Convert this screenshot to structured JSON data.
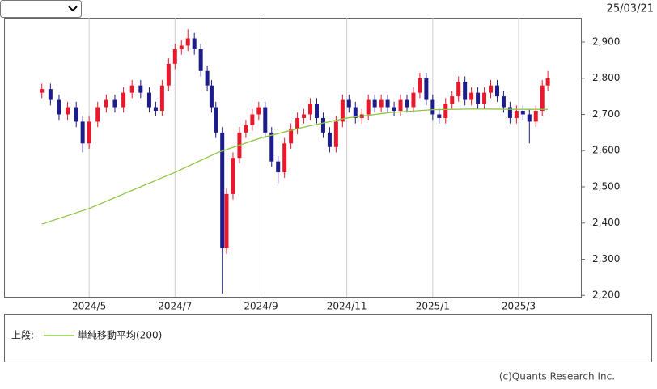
{
  "header": {
    "date": "25/03/21"
  },
  "chart_data": {
    "type": "candlestick",
    "x": [
      3.9,
      4.1,
      4.3,
      4.5,
      4.7,
      4.85,
      5.0,
      5.2,
      5.4,
      5.6,
      5.8,
      6.0,
      6.2,
      6.4,
      6.55,
      6.7,
      6.85,
      7.0,
      7.15,
      7.3,
      7.45,
      7.6,
      7.75,
      7.85,
      7.95,
      8.1,
      8.2,
      8.35,
      8.5,
      8.65,
      8.8,
      8.95,
      9.1,
      9.25,
      9.4,
      9.55,
      9.7,
      9.85,
      10.0,
      10.15,
      10.3,
      10.45,
      10.6,
      10.75,
      10.9,
      11.05,
      11.2,
      11.35,
      11.5,
      11.65,
      11.8,
      11.95,
      12.1,
      12.25,
      12.4,
      12.55,
      12.7,
      12.85,
      13.0,
      13.15,
      13.3,
      13.45,
      13.6,
      13.75,
      13.9,
      14.05,
      14.2,
      14.35,
      14.5,
      14.65,
      14.8,
      14.95,
      15.1,
      15.25,
      15.4,
      15.55,
      15.68
    ],
    "open": [
      2760,
      2770,
      2740,
      2700,
      2720,
      2680,
      2620,
      2680,
      2720,
      2740,
      2720,
      2760,
      2780,
      2760,
      2720,
      2710,
      2780,
      2840,
      2880,
      2890,
      2910,
      2880,
      2820,
      2780,
      2720,
      2650,
      2330,
      2480,
      2580,
      2650,
      2670,
      2700,
      2720,
      2650,
      2570,
      2540,
      2620,
      2660,
      2690,
      2700,
      2730,
      2690,
      2650,
      2610,
      2680,
      2740,
      2720,
      2690,
      2700,
      2740,
      2720,
      2740,
      2720,
      2710,
      2740,
      2720,
      2760,
      2800,
      2740,
      2700,
      2690,
      2730,
      2750,
      2790,
      2740,
      2760,
      2730,
      2760,
      2780,
      2750,
      2720,
      2690,
      2710,
      2700,
      2680,
      2710,
      2780
    ],
    "high": [
      2785,
      2785,
      2755,
      2735,
      2735,
      2695,
      2695,
      2735,
      2755,
      2755,
      2775,
      2795,
      2795,
      2775,
      2735,
      2795,
      2855,
      2895,
      2905,
      2935,
      2925,
      2895,
      2835,
      2795,
      2735,
      2665,
      2495,
      2595,
      2665,
      2685,
      2715,
      2735,
      2735,
      2665,
      2585,
      2635,
      2675,
      2705,
      2715,
      2745,
      2745,
      2705,
      2665,
      2695,
      2755,
      2755,
      2735,
      2715,
      2755,
      2755,
      2755,
      2755,
      2735,
      2755,
      2755,
      2775,
      2815,
      2815,
      2755,
      2715,
      2745,
      2765,
      2805,
      2805,
      2775,
      2775,
      2775,
      2795,
      2795,
      2765,
      2735,
      2725,
      2725,
      2715,
      2725,
      2795,
      2820
    ],
    "low": [
      2745,
      2725,
      2685,
      2685,
      2665,
      2595,
      2605,
      2665,
      2705,
      2705,
      2705,
      2745,
      2745,
      2705,
      2695,
      2695,
      2765,
      2825,
      2865,
      2875,
      2865,
      2805,
      2765,
      2705,
      2635,
      2205,
      2315,
      2465,
      2565,
      2635,
      2655,
      2685,
      2635,
      2555,
      2510,
      2525,
      2605,
      2645,
      2675,
      2685,
      2675,
      2635,
      2595,
      2595,
      2665,
      2705,
      2675,
      2675,
      2685,
      2705,
      2705,
      2705,
      2695,
      2695,
      2705,
      2705,
      2745,
      2725,
      2685,
      2675,
      2675,
      2715,
      2735,
      2725,
      2725,
      2715,
      2715,
      2745,
      2735,
      2705,
      2675,
      2675,
      2685,
      2620,
      2665,
      2695,
      2765
    ],
    "close": [
      2770,
      2740,
      2700,
      2720,
      2680,
      2620,
      2680,
      2720,
      2740,
      2720,
      2760,
      2780,
      2760,
      2720,
      2710,
      2780,
      2840,
      2880,
      2890,
      2910,
      2880,
      2820,
      2780,
      2720,
      2650,
      2330,
      2480,
      2580,
      2650,
      2670,
      2700,
      2720,
      2650,
      2570,
      2540,
      2620,
      2660,
      2690,
      2700,
      2730,
      2690,
      2650,
      2610,
      2680,
      2740,
      2720,
      2690,
      2700,
      2740,
      2720,
      2740,
      2720,
      2710,
      2740,
      2720,
      2760,
      2800,
      2740,
      2700,
      2690,
      2730,
      2750,
      2790,
      2740,
      2760,
      2730,
      2760,
      2780,
      2750,
      2720,
      2690,
      2710,
      2700,
      2680,
      2710,
      2780,
      2800
    ],
    "up_color": "#e8192c",
    "down_color": "#1c1c8a",
    "moving_average": {
      "name": "単純移動平均(200)",
      "color": "#8cc63f",
      "x": [
        3.9,
        5,
        6,
        7,
        8,
        9,
        10,
        11,
        12,
        13,
        14,
        15,
        15.68
      ],
      "values": [
        2397,
        2440,
        2490,
        2540,
        2595,
        2635,
        2665,
        2690,
        2705,
        2713,
        2715,
        2714,
        2714
      ]
    },
    "legend_title": "上段:",
    "xlim": [
      3.02,
      16.45
    ],
    "ylim": [
      2196,
      2967
    ],
    "xticks": [
      {
        "value": 5,
        "label": "2024/5"
      },
      {
        "value": 7,
        "label": "2024/7"
      },
      {
        "value": 9,
        "label": "2024/9"
      },
      {
        "value": 11,
        "label": "2024/11"
      },
      {
        "value": 13,
        "label": "2025/1"
      },
      {
        "value": 15,
        "label": "2025/3"
      }
    ],
    "yticks": [
      {
        "value": 2200,
        "label": "2,200"
      },
      {
        "value": 2300,
        "label": "2,300"
      },
      {
        "value": 2400,
        "label": "2,400"
      },
      {
        "value": 2500,
        "label": "2,500"
      },
      {
        "value": 2600,
        "label": "2,600"
      },
      {
        "value": 2700,
        "label": "2,700"
      },
      {
        "value": 2800,
        "label": "2,800"
      },
      {
        "value": 2900,
        "label": "2,900"
      }
    ],
    "grid": true
  },
  "footer": {
    "copyright": "(c)Quants Research Inc."
  }
}
